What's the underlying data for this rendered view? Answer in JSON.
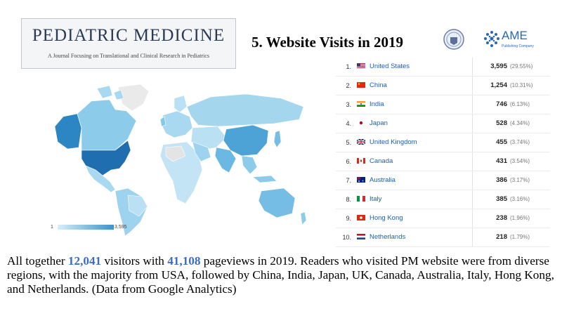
{
  "journal": {
    "title": "PEDIATRIC MEDICINE",
    "subtitle": "A Journal Focusing on Translational and Clinical Research in Pediatrics"
  },
  "slide_title": "5. Website Visits in 2019",
  "ame_logo": {
    "name": "AME",
    "subtext": "Publishing Company"
  },
  "map_legend": {
    "min": "1",
    "max": "3,595"
  },
  "caption": {
    "p1": "All together ",
    "visitors": "12,041",
    "p2": " visitors with ",
    "pageviews": "41,108",
    "p3": " pageviews in 2019. Readers who visited PM website were from diverse regions, with the majority from USA, followed by China, India, Japan, UK, Canada, Australia, Italy, Hong Kong, and Netherlands. (Data from Google Analytics)"
  },
  "colors": {
    "map_low": "#d9eef8",
    "map_high": "#1f6fb0",
    "link": "#1a5fb4",
    "highlight": "#3a6cc6"
  },
  "chart_data": {
    "type": "table",
    "columns": [
      "rank",
      "country",
      "visits",
      "share"
    ],
    "rows": [
      {
        "rank": "1.",
        "country": "United States",
        "flag": "us",
        "visits": "3,595",
        "share": "(29.55%)"
      },
      {
        "rank": "2.",
        "country": "China",
        "flag": "cn",
        "visits": "1,254",
        "share": "(10.31%)"
      },
      {
        "rank": "3.",
        "country": "India",
        "flag": "in",
        "visits": "746",
        "share": "(6.13%)"
      },
      {
        "rank": "4.",
        "country": "Japan",
        "flag": "jp",
        "visits": "528",
        "share": "(4.34%)"
      },
      {
        "rank": "5.",
        "country": "United Kingdom",
        "flag": "gb",
        "visits": "455",
        "share": "(3.74%)"
      },
      {
        "rank": "6.",
        "country": "Canada",
        "flag": "ca",
        "visits": "431",
        "share": "(3.54%)"
      },
      {
        "rank": "7.",
        "country": "Australia",
        "flag": "au",
        "visits": "386",
        "share": "(3.17%)"
      },
      {
        "rank": "8.",
        "country": "Italy",
        "flag": "it",
        "visits": "385",
        "share": "(3.16%)"
      },
      {
        "rank": "9.",
        "country": "Hong Kong",
        "flag": "hk",
        "visits": "238",
        "share": "(1.96%)"
      },
      {
        "rank": "10.",
        "country": "Netherlands",
        "flag": "nl",
        "visits": "218",
        "share": "(1.79%)"
      }
    ]
  }
}
